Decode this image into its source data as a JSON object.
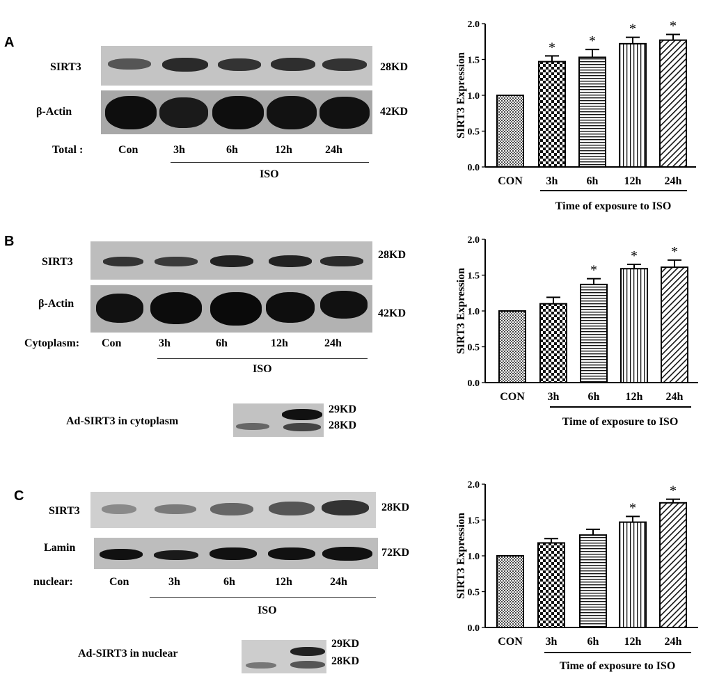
{
  "panels": [
    {
      "letter": "A",
      "rows": [
        "SIRT3",
        "β-Actin"
      ],
      "fraction_label": "Total :",
      "lanes": [
        "Con",
        "3h",
        "6h",
        "12h",
        "24h"
      ],
      "mw": [
        "28KD",
        "42KD"
      ],
      "treatment": "ISO"
    },
    {
      "letter": "B",
      "rows": [
        "SIRT3",
        "β-Actin"
      ],
      "fraction_label": "Cytoplasm:",
      "lanes": [
        "Con",
        "3h",
        "6h",
        "12h",
        "24h"
      ],
      "mw": [
        "28KD",
        "42KD"
      ],
      "treatment": "ISO",
      "inset_label": "Ad-SIRT3  in cytoplasm",
      "inset_mw": [
        "29KD",
        "28KD"
      ]
    },
    {
      "letter": "C",
      "rows": [
        "SIRT3",
        "Lamin"
      ],
      "fraction_label": "nuclear:",
      "lanes": [
        "Con",
        "3h",
        "6h",
        "12h",
        "24h"
      ],
      "mw": [
        "28KD",
        "72KD"
      ],
      "treatment": "ISO",
      "inset_label": "Ad-SIRT3 in nuclear",
      "inset_mw": [
        "29KD",
        "28KD"
      ]
    }
  ],
  "chart_data": [
    {
      "type": "bar",
      "categories": [
        "CON",
        "3h",
        "6h",
        "12h",
        "24h"
      ],
      "values": [
        1.0,
        1.47,
        1.53,
        1.72,
        1.77
      ],
      "errors": [
        0,
        0.08,
        0.11,
        0.09,
        0.08
      ],
      "significant": [
        false,
        true,
        true,
        true,
        true
      ],
      "sig_mark": "*",
      "ylabel": "SIRT3 Expression",
      "xlabel": "Time of exposure to ISO",
      "ylim": [
        0,
        2.0
      ],
      "yticks": [
        "0.0",
        "0.5",
        "1.0",
        "1.5",
        "2.0"
      ],
      "patterns": [
        "crosshatch-fine",
        "checker",
        "horizontal",
        "vertical",
        "diagonal"
      ]
    },
    {
      "type": "bar",
      "categories": [
        "CON",
        "3h",
        "6h",
        "12h",
        "24h"
      ],
      "values": [
        1.0,
        1.1,
        1.37,
        1.59,
        1.61
      ],
      "errors": [
        0,
        0.09,
        0.08,
        0.06,
        0.1
      ],
      "significant": [
        false,
        false,
        true,
        true,
        true
      ],
      "sig_mark": "*",
      "ylabel": "SIRT3 Expression",
      "xlabel": "Time of exposure to ISO",
      "ylim": [
        0,
        2.0
      ],
      "yticks": [
        "0.0",
        "0.5",
        "1.0",
        "1.5",
        "2.0"
      ],
      "patterns": [
        "crosshatch-fine",
        "checker",
        "horizontal",
        "vertical",
        "diagonal"
      ]
    },
    {
      "type": "bar",
      "categories": [
        "CON",
        "3h",
        "6h",
        "12h",
        "24h"
      ],
      "values": [
        1.0,
        1.18,
        1.29,
        1.47,
        1.74
      ],
      "errors": [
        0,
        0.06,
        0.08,
        0.08,
        0.05
      ],
      "significant": [
        false,
        false,
        false,
        true,
        true
      ],
      "sig_mark": "*",
      "ylabel": "SIRT3 Expression",
      "xlabel": "Time of exposure to ISO",
      "ylim": [
        0,
        2.0
      ],
      "yticks": [
        "0.0",
        "0.5",
        "1.0",
        "1.5",
        "2.0"
      ],
      "patterns": [
        "crosshatch-fine",
        "checker",
        "horizontal",
        "vertical",
        "diagonal"
      ]
    }
  ]
}
